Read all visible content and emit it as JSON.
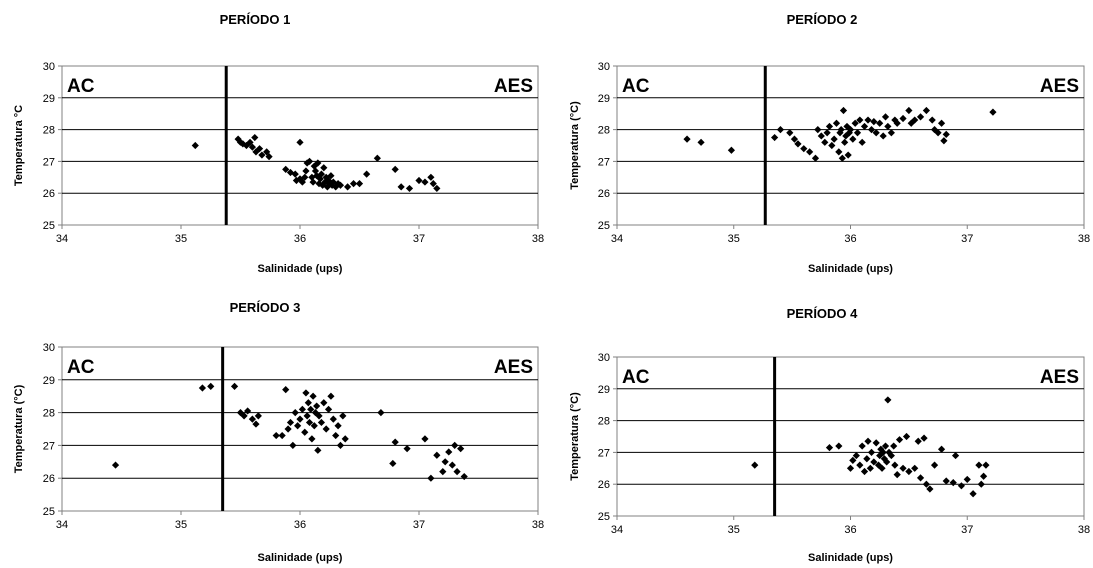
{
  "chart_data": [
    {
      "type": "scatter",
      "title": "PERÍODO 1",
      "xlabel": "Salinidade (ups)",
      "ylabel": "Temperatura °C",
      "xlim": [
        34,
        38
      ],
      "ylim": [
        25,
        30
      ],
      "xticks": [
        "34",
        "35",
        "36",
        "37",
        "38"
      ],
      "yticks": [
        "25",
        "26",
        "27",
        "28",
        "29",
        "30"
      ],
      "grid": "horizontal",
      "zone_left_label": "AC",
      "zone_right_label": "AES",
      "divider_x": 35.38,
      "points": [
        [
          35.12,
          27.5
        ],
        [
          35.48,
          27.7
        ],
        [
          35.5,
          27.6
        ],
        [
          35.52,
          27.55
        ],
        [
          35.55,
          27.5
        ],
        [
          35.58,
          27.6
        ],
        [
          35.6,
          27.45
        ],
        [
          35.62,
          27.75
        ],
        [
          35.63,
          27.3
        ],
        [
          35.66,
          27.4
        ],
        [
          35.68,
          27.2
        ],
        [
          35.72,
          27.3
        ],
        [
          35.74,
          27.15
        ],
        [
          36.0,
          27.6
        ],
        [
          35.88,
          26.75
        ],
        [
          35.92,
          26.65
        ],
        [
          35.96,
          26.6
        ],
        [
          35.97,
          26.4
        ],
        [
          36.0,
          26.45
        ],
        [
          36.02,
          26.35
        ],
        [
          36.04,
          26.5
        ],
        [
          36.05,
          26.7
        ],
        [
          36.06,
          26.95
        ],
        [
          36.08,
          27.0
        ],
        [
          36.1,
          26.5
        ],
        [
          36.11,
          26.35
        ],
        [
          36.12,
          26.85
        ],
        [
          36.13,
          26.7
        ],
        [
          36.14,
          26.55
        ],
        [
          36.15,
          26.95
        ],
        [
          36.16,
          26.3
        ],
        [
          36.17,
          26.45
        ],
        [
          36.18,
          26.6
        ],
        [
          36.19,
          26.25
        ],
        [
          36.2,
          26.8
        ],
        [
          36.21,
          26.35
        ],
        [
          36.22,
          26.5
        ],
        [
          36.23,
          26.2
        ],
        [
          36.24,
          26.4
        ],
        [
          36.25,
          26.3
        ],
        [
          36.26,
          26.55
        ],
        [
          36.27,
          26.25
        ],
        [
          36.28,
          26.35
        ],
        [
          36.3,
          26.2
        ],
        [
          36.32,
          26.3
        ],
        [
          36.34,
          26.25
        ],
        [
          36.4,
          26.2
        ],
        [
          36.45,
          26.3
        ],
        [
          36.5,
          26.3
        ],
        [
          36.56,
          26.6
        ],
        [
          36.65,
          27.1
        ],
        [
          36.8,
          26.75
        ],
        [
          36.85,
          26.2
        ],
        [
          36.92,
          26.15
        ],
        [
          37.0,
          26.4
        ],
        [
          37.05,
          26.35
        ],
        [
          37.1,
          26.5
        ],
        [
          37.12,
          26.3
        ],
        [
          37.15,
          26.15
        ]
      ]
    },
    {
      "type": "scatter",
      "title": "PERÍODO 2",
      "xlabel": "Salinidade (ups)",
      "ylabel": "Temperatura (°C)",
      "xlim": [
        34,
        38
      ],
      "ylim": [
        25,
        30
      ],
      "xticks": [
        "34",
        "35",
        "36",
        "37",
        "38"
      ],
      "yticks": [
        "25",
        "26",
        "27",
        "28",
        "29",
        "30"
      ],
      "grid": "horizontal",
      "zone_left_label": "AC",
      "zone_right_label": "AES",
      "divider_x": 35.27,
      "points": [
        [
          34.6,
          27.7
        ],
        [
          34.72,
          27.6
        ],
        [
          34.98,
          27.35
        ],
        [
          35.35,
          27.75
        ],
        [
          35.4,
          28.0
        ],
        [
          35.48,
          27.9
        ],
        [
          35.52,
          27.7
        ],
        [
          35.55,
          27.55
        ],
        [
          35.6,
          27.4
        ],
        [
          35.65,
          27.3
        ],
        [
          35.7,
          27.1
        ],
        [
          35.72,
          28.0
        ],
        [
          35.75,
          27.8
        ],
        [
          35.78,
          27.6
        ],
        [
          35.8,
          27.9
        ],
        [
          35.82,
          28.1
        ],
        [
          35.84,
          27.5
        ],
        [
          35.86,
          27.7
        ],
        [
          35.88,
          28.2
        ],
        [
          35.9,
          27.3
        ],
        [
          35.91,
          27.9
        ],
        [
          35.92,
          28.0
        ],
        [
          35.93,
          27.1
        ],
        [
          35.94,
          28.6
        ],
        [
          35.95,
          27.6
        ],
        [
          35.96,
          27.8
        ],
        [
          35.97,
          28.1
        ],
        [
          35.98,
          27.2
        ],
        [
          35.99,
          27.9
        ],
        [
          36.0,
          28.0
        ],
        [
          36.02,
          27.7
        ],
        [
          36.04,
          28.2
        ],
        [
          36.06,
          27.9
        ],
        [
          36.08,
          28.3
        ],
        [
          36.1,
          27.6
        ],
        [
          36.12,
          28.1
        ],
        [
          36.15,
          28.3
        ],
        [
          36.18,
          28.0
        ],
        [
          36.2,
          28.25
        ],
        [
          36.22,
          27.9
        ],
        [
          36.25,
          28.2
        ],
        [
          36.28,
          27.8
        ],
        [
          36.3,
          28.4
        ],
        [
          36.32,
          28.1
        ],
        [
          36.35,
          27.9
        ],
        [
          36.38,
          28.3
        ],
        [
          36.4,
          28.2
        ],
        [
          36.45,
          28.35
        ],
        [
          36.5,
          28.6
        ],
        [
          36.52,
          28.2
        ],
        [
          36.55,
          28.3
        ],
        [
          36.6,
          28.4
        ],
        [
          36.65,
          28.6
        ],
        [
          36.7,
          28.3
        ],
        [
          36.72,
          28.0
        ],
        [
          36.75,
          27.9
        ],
        [
          36.78,
          28.2
        ],
        [
          36.8,
          27.65
        ],
        [
          36.82,
          27.85
        ],
        [
          37.22,
          28.55
        ]
      ]
    },
    {
      "type": "scatter",
      "title": "PERÍODO 3",
      "xlabel": "Salinidade (ups)",
      "ylabel": "Temperatura (°C)",
      "xlim": [
        34,
        38
      ],
      "ylim": [
        25,
        30
      ],
      "xticks": [
        "34",
        "35",
        "36",
        "37",
        "38"
      ],
      "yticks": [
        "25",
        "26",
        "27",
        "28",
        "29",
        "30"
      ],
      "grid": "horizontal",
      "zone_left_label": "AC",
      "zone_right_label": "AES",
      "divider_x": 35.35,
      "points": [
        [
          34.45,
          26.4
        ],
        [
          35.18,
          28.75
        ],
        [
          35.25,
          28.8
        ],
        [
          35.45,
          28.8
        ],
        [
          35.5,
          28.0
        ],
        [
          35.53,
          27.9
        ],
        [
          35.56,
          28.05
        ],
        [
          35.6,
          27.8
        ],
        [
          35.63,
          27.65
        ],
        [
          35.65,
          27.9
        ],
        [
          35.8,
          27.3
        ],
        [
          35.85,
          27.3
        ],
        [
          35.88,
          28.7
        ],
        [
          35.9,
          27.5
        ],
        [
          35.92,
          27.7
        ],
        [
          35.94,
          27.0
        ],
        [
          35.96,
          28.0
        ],
        [
          35.98,
          27.6
        ],
        [
          36.0,
          27.8
        ],
        [
          36.02,
          28.1
        ],
        [
          36.04,
          27.4
        ],
        [
          36.05,
          28.6
        ],
        [
          36.06,
          27.9
        ],
        [
          36.07,
          28.3
        ],
        [
          36.08,
          27.7
        ],
        [
          36.09,
          28.1
        ],
        [
          36.1,
          27.2
        ],
        [
          36.11,
          28.5
        ],
        [
          36.12,
          27.6
        ],
        [
          36.13,
          28.0
        ],
        [
          36.14,
          28.2
        ],
        [
          36.15,
          26.85
        ],
        [
          36.16,
          27.9
        ],
        [
          36.18,
          27.7
        ],
        [
          36.2,
          28.3
        ],
        [
          36.22,
          27.5
        ],
        [
          36.24,
          28.1
        ],
        [
          36.26,
          28.5
        ],
        [
          36.28,
          27.8
        ],
        [
          36.3,
          27.3
        ],
        [
          36.32,
          27.6
        ],
        [
          36.34,
          27.0
        ],
        [
          36.36,
          27.9
        ],
        [
          36.38,
          27.2
        ],
        [
          36.68,
          28.0
        ],
        [
          36.78,
          26.45
        ],
        [
          36.8,
          27.1
        ],
        [
          36.9,
          26.9
        ],
        [
          37.05,
          27.2
        ],
        [
          37.1,
          26.0
        ],
        [
          37.15,
          26.7
        ],
        [
          37.2,
          26.2
        ],
        [
          37.22,
          26.5
        ],
        [
          37.25,
          26.8
        ],
        [
          37.28,
          26.4
        ],
        [
          37.3,
          27.0
        ],
        [
          37.32,
          26.2
        ],
        [
          37.35,
          26.9
        ],
        [
          37.38,
          26.05
        ]
      ]
    },
    {
      "type": "scatter",
      "title": "PERÍODO 4",
      "xlabel": "Salinidade (ups)",
      "ylabel": "Temperatura (°C)",
      "xlim": [
        34,
        38
      ],
      "ylim": [
        25,
        30
      ],
      "xticks": [
        "34",
        "35",
        "36",
        "37",
        "38"
      ],
      "yticks": [
        "25",
        "26",
        "27",
        "28",
        "29",
        "30"
      ],
      "grid": "horizontal",
      "zone_left_label": "AC",
      "zone_right_label": "AES",
      "divider_x": 35.35,
      "points": [
        [
          35.18,
          26.6
        ],
        [
          35.82,
          27.15
        ],
        [
          35.9,
          27.2
        ],
        [
          36.0,
          26.5
        ],
        [
          36.02,
          26.75
        ],
        [
          36.05,
          26.9
        ],
        [
          36.08,
          26.6
        ],
        [
          36.1,
          27.2
        ],
        [
          36.12,
          26.4
        ],
        [
          36.14,
          26.8
        ],
        [
          36.15,
          27.35
        ],
        [
          36.17,
          26.5
        ],
        [
          36.18,
          27.0
        ],
        [
          36.2,
          26.7
        ],
        [
          36.22,
          27.3
        ],
        [
          36.24,
          26.6
        ],
        [
          36.25,
          26.9
        ],
        [
          36.26,
          27.1
        ],
        [
          36.27,
          26.5
        ],
        [
          36.28,
          27.0
        ],
        [
          36.29,
          26.8
        ],
        [
          36.3,
          27.2
        ],
        [
          36.31,
          26.7
        ],
        [
          36.32,
          28.65
        ],
        [
          36.33,
          27.0
        ],
        [
          36.35,
          26.9
        ],
        [
          36.37,
          27.2
        ],
        [
          36.38,
          26.6
        ],
        [
          36.4,
          26.3
        ],
        [
          36.42,
          27.4
        ],
        [
          36.45,
          26.5
        ],
        [
          36.48,
          27.5
        ],
        [
          36.5,
          26.4
        ],
        [
          36.55,
          26.5
        ],
        [
          36.58,
          27.35
        ],
        [
          36.6,
          26.2
        ],
        [
          36.63,
          27.45
        ],
        [
          36.65,
          26.0
        ],
        [
          36.68,
          25.85
        ],
        [
          36.72,
          26.6
        ],
        [
          36.78,
          27.1
        ],
        [
          36.82,
          26.1
        ],
        [
          36.88,
          26.05
        ],
        [
          36.9,
          26.9
        ],
        [
          36.95,
          25.95
        ],
        [
          37.0,
          26.15
        ],
        [
          37.05,
          25.7
        ],
        [
          37.1,
          26.6
        ],
        [
          37.12,
          26.0
        ],
        [
          37.14,
          26.25
        ],
        [
          37.16,
          26.6
        ]
      ]
    }
  ]
}
